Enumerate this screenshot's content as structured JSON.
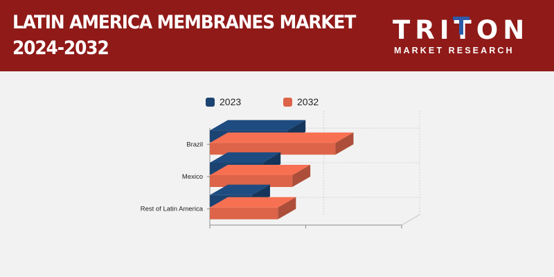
{
  "header": {
    "title_line1": "LATIN AMERICA MEMBRANES MARKET",
    "title_line2": "2024-2032",
    "logo_word": "TRITON",
    "logo_sub": "MARKET RESEARCH",
    "logo_color": "#2e5aa8"
  },
  "chart_data": {
    "type": "bar",
    "orientation": "horizontal",
    "categories": [
      "Brazil",
      "Mexico",
      "Rest of Latin America"
    ],
    "series": [
      {
        "name": "2023",
        "values": [
          0.81,
          0.55,
          0.44
        ],
        "color": "#1b4473"
      },
      {
        "name": "2032",
        "values": [
          1.31,
          0.86,
          0.71
        ],
        "color": "#dd6449"
      }
    ],
    "xlim": [
      0,
      2
    ],
    "title": "",
    "xlabel": "",
    "ylabel": "",
    "legend": "top-center",
    "grid": true
  }
}
